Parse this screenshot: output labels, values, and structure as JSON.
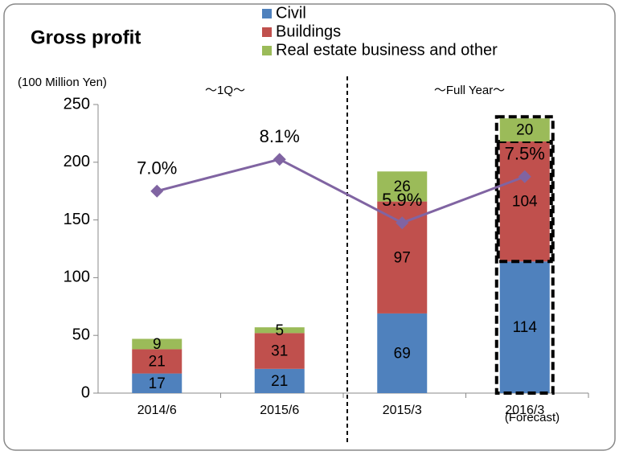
{
  "chart_data": {
    "type": "stacked-bar-line",
    "title": "Gross profit",
    "y_label": "(100 Million Yen)",
    "annotations": [
      "～1Q～",
      "～Full Year～",
      "(Forecast)"
    ],
    "categories": [
      "2014/6",
      "2015/6",
      "2015/3",
      "2016/3"
    ],
    "series": [
      {
        "name": "Civil",
        "color": "#4f81bd",
        "values": [
          17,
          21,
          69,
          114
        ]
      },
      {
        "name": "Buildings",
        "color": "#c0504d",
        "values": [
          21,
          31,
          97,
          104
        ]
      },
      {
        "name": "Real estate business and other",
        "color": "#9bbb59",
        "values": [
          9,
          5,
          26,
          20
        ]
      }
    ],
    "line": {
      "color": "#8064a2",
      "axis": "y2",
      "values": [
        7.0,
        8.1,
        5.9,
        7.5
      ],
      "value_labels": [
        "7.0%",
        "8.1%",
        "5.9%",
        "7.5%"
      ]
    },
    "ylim": [
      0,
      250
    ],
    "yticks": [
      0,
      50,
      100,
      150,
      200,
      250
    ],
    "y2lim": [
      0,
      10
    ]
  }
}
